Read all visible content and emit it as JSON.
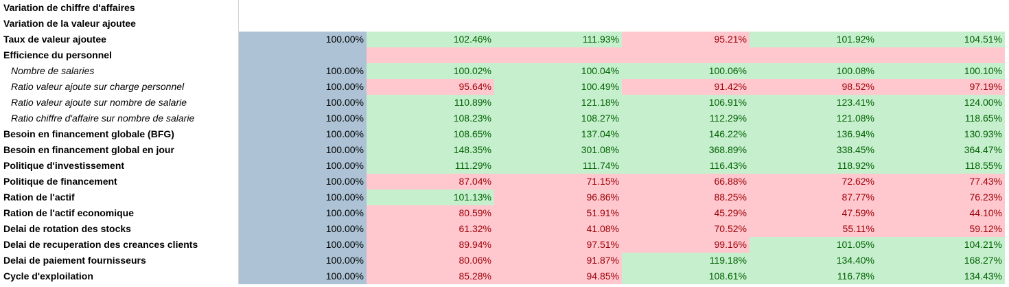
{
  "colors": {
    "positive_fill": "#c6efce",
    "positive_text": "#006100",
    "negative_fill": "#ffc7ce",
    "negative_text": "#9c0006",
    "base_fill": "#adc3d5"
  },
  "rows": [
    {
      "label": "Variation de chiffre d'affaires",
      "style": "bold",
      "base": "",
      "values": [
        "",
        "",
        "",
        "",
        ""
      ],
      "status": [
        "blank",
        "blank",
        "blank",
        "blank",
        "blank"
      ],
      "base_fill": false
    },
    {
      "label": "Variation de la valeur ajoutee",
      "style": "bold",
      "base": "",
      "values": [
        "",
        "",
        "",
        "",
        ""
      ],
      "status": [
        "blank",
        "blank",
        "blank",
        "blank",
        "blank"
      ],
      "base_fill": false
    },
    {
      "label": "Taux de valeur ajoutee",
      "style": "bold",
      "base": "100.00%",
      "values": [
        "102.46%",
        "111.93%",
        "95.21%",
        "101.92%",
        "104.51%"
      ],
      "status": [
        "pos",
        "pos",
        "neg",
        "pos",
        "pos"
      ],
      "base_fill": true
    },
    {
      "label": "Efficience du personnel",
      "style": "bold",
      "base": "",
      "values": [
        "",
        "",
        "",
        "",
        ""
      ],
      "status": [
        "neg",
        "neg",
        "neg",
        "neg",
        "neg"
      ],
      "base_fill": true
    },
    {
      "label": "Nombre de salaries",
      "style": "italic",
      "base": "100.00%",
      "values": [
        "100.02%",
        "100.04%",
        "100.06%",
        "100.08%",
        "100.10%"
      ],
      "status": [
        "pos",
        "pos",
        "pos",
        "pos",
        "pos"
      ],
      "base_fill": true
    },
    {
      "label": "Ratio valeur ajoute sur charge personnel",
      "style": "italic",
      "base": "100.00%",
      "values": [
        "95.64%",
        "100.49%",
        "91.42%",
        "98.52%",
        "97.19%"
      ],
      "status": [
        "neg",
        "pos",
        "neg",
        "neg",
        "neg"
      ],
      "base_fill": true
    },
    {
      "label": "Ratio valeur ajoute sur nombre de salarie",
      "style": "italic",
      "base": "100.00%",
      "values": [
        "110.89%",
        "121.18%",
        "106.91%",
        "123.41%",
        "124.00%"
      ],
      "status": [
        "pos",
        "pos",
        "pos",
        "pos",
        "pos"
      ],
      "base_fill": true
    },
    {
      "label": "Ratio chiffre d'affaire sur nombre de salarie",
      "style": "italic",
      "base": "100.00%",
      "values": [
        "108.23%",
        "108.27%",
        "112.29%",
        "121.08%",
        "118.65%"
      ],
      "status": [
        "pos",
        "pos",
        "pos",
        "pos",
        "pos"
      ],
      "base_fill": true
    },
    {
      "label": "Besoin en financement globale (BFG)",
      "style": "bold",
      "base": "100.00%",
      "values": [
        "108.65%",
        "137.04%",
        "146.22%",
        "136.94%",
        "130.93%"
      ],
      "status": [
        "pos",
        "pos",
        "pos",
        "pos",
        "pos"
      ],
      "base_fill": true
    },
    {
      "label": "Besoin en financement global en jour",
      "style": "bold",
      "base": "100.00%",
      "values": [
        "148.35%",
        "301.08%",
        "368.89%",
        "338.45%",
        "364.47%"
      ],
      "status": [
        "pos",
        "pos",
        "pos",
        "pos",
        "pos"
      ],
      "base_fill": true
    },
    {
      "label": "Politique d'investissement",
      "style": "bold",
      "base": "100.00%",
      "values": [
        "111.29%",
        "111.74%",
        "116.43%",
        "118.92%",
        "118.55%"
      ],
      "status": [
        "pos",
        "pos",
        "pos",
        "pos",
        "pos"
      ],
      "base_fill": true
    },
    {
      "label": "Politique de financement",
      "style": "bold",
      "base": "100.00%",
      "values": [
        "87.04%",
        "71.15%",
        "66.88%",
        "72.62%",
        "77.43%"
      ],
      "status": [
        "neg",
        "neg",
        "neg",
        "neg",
        "neg"
      ],
      "base_fill": true
    },
    {
      "label": "Ration de l'actif",
      "style": "bold",
      "base": "100.00%",
      "values": [
        "101.13%",
        "96.86%",
        "88.25%",
        "87.77%",
        "76.23%"
      ],
      "status": [
        "pos",
        "neg",
        "neg",
        "neg",
        "neg"
      ],
      "base_fill": true
    },
    {
      "label": "Ration de l'actif economique",
      "style": "bold",
      "base": "100.00%",
      "values": [
        "80.59%",
        "51.91%",
        "45.29%",
        "47.59%",
        "44.10%"
      ],
      "status": [
        "neg",
        "neg",
        "neg",
        "neg",
        "neg"
      ],
      "base_fill": true
    },
    {
      "label": "Delai de rotation des stocks",
      "style": "bold",
      "base": "100.00%",
      "values": [
        "61.32%",
        "41.08%",
        "70.52%",
        "55.11%",
        "59.12%"
      ],
      "status": [
        "neg",
        "neg",
        "neg",
        "neg",
        "neg"
      ],
      "base_fill": true
    },
    {
      "label": "Delai de recuperation des creances clients",
      "style": "bold",
      "base": "100.00%",
      "values": [
        "89.94%",
        "97.51%",
        "99.16%",
        "101.05%",
        "104.21%"
      ],
      "status": [
        "neg",
        "neg",
        "neg",
        "pos",
        "pos"
      ],
      "base_fill": true
    },
    {
      "label": "Delai de paiement fournisseurs",
      "style": "bold",
      "base": "100.00%",
      "values": [
        "80.06%",
        "91.87%",
        "119.18%",
        "134.40%",
        "168.27%"
      ],
      "status": [
        "neg",
        "neg",
        "pos",
        "pos",
        "pos"
      ],
      "base_fill": true
    },
    {
      "label": "Cycle d'exploilation",
      "style": "bold",
      "base": "100.00%",
      "values": [
        "85.28%",
        "94.85%",
        "108.61%",
        "116.78%",
        "134.43%"
      ],
      "status": [
        "neg",
        "neg",
        "pos",
        "pos",
        "pos"
      ],
      "base_fill": true
    }
  ]
}
